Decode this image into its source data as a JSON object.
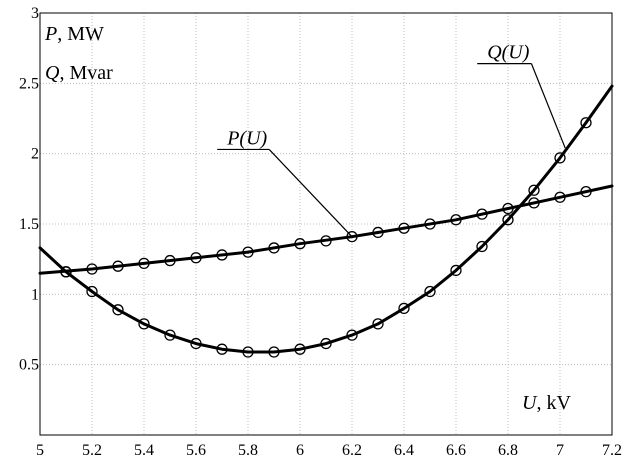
{
  "chart_data": {
    "type": "line",
    "ylabel_p": {
      "sym": "P",
      "unit": ", MW"
    },
    "ylabel_q": {
      "sym": "Q",
      "unit": ", Mvar"
    },
    "xlabel": {
      "sym": "U",
      "unit": ", kV"
    },
    "xlim": [
      5.0,
      7.2
    ],
    "ylim": [
      0,
      3
    ],
    "xticks": [
      "5",
      "5.2",
      "5.4",
      "5.6",
      "5.8",
      "6",
      "6.2",
      "6.4",
      "6.6",
      "6.8",
      "7",
      "7.2"
    ],
    "yticks": [
      "0.5",
      "1",
      "1.5",
      "2",
      "2.5",
      "3"
    ],
    "grid": true,
    "series": [
      {
        "name": "P(U)",
        "marker": "circle",
        "x": [
          5.1,
          5.2,
          5.3,
          5.4,
          5.5,
          5.6,
          5.7,
          5.8,
          5.9,
          6.0,
          6.1,
          6.2,
          6.3,
          6.4,
          6.5,
          6.6,
          6.7,
          6.8,
          6.9,
          7.0,
          7.1
        ],
        "values": [
          1.16,
          1.18,
          1.2,
          1.22,
          1.24,
          1.26,
          1.28,
          1.3,
          1.33,
          1.36,
          1.38,
          1.41,
          1.44,
          1.47,
          1.5,
          1.53,
          1.57,
          1.61,
          1.65,
          1.69,
          1.73
        ],
        "line_x": [
          5.0,
          5.2,
          5.4,
          5.6,
          5.8,
          6.0,
          6.2,
          6.4,
          6.6,
          6.8,
          7.0,
          7.2
        ],
        "line_y": [
          1.15,
          1.18,
          1.22,
          1.26,
          1.3,
          1.36,
          1.41,
          1.47,
          1.53,
          1.61,
          1.69,
          1.77
        ]
      },
      {
        "name": "Q(U)",
        "marker": "circle",
        "x": [
          5.1,
          5.2,
          5.3,
          5.4,
          5.5,
          5.6,
          5.7,
          5.8,
          5.9,
          6.0,
          6.1,
          6.2,
          6.3,
          6.4,
          6.5,
          6.6,
          6.7,
          6.8,
          6.9,
          7.0,
          7.1
        ],
        "values": [
          1.16,
          1.02,
          0.89,
          0.79,
          0.71,
          0.65,
          0.61,
          0.59,
          0.59,
          0.61,
          0.65,
          0.71,
          0.79,
          0.9,
          1.02,
          1.17,
          1.34,
          1.53,
          1.74,
          1.97,
          2.22
        ],
        "line_x": [
          5.0,
          5.1,
          5.2,
          5.3,
          5.4,
          5.5,
          5.6,
          5.7,
          5.8,
          5.9,
          6.0,
          6.1,
          6.2,
          6.3,
          6.4,
          6.5,
          6.6,
          6.7,
          6.8,
          6.9,
          7.0,
          7.1,
          7.2
        ],
        "line_y": [
          1.33,
          1.16,
          1.02,
          0.89,
          0.79,
          0.71,
          0.65,
          0.61,
          0.59,
          0.59,
          0.61,
          0.65,
          0.71,
          0.79,
          0.9,
          1.02,
          1.17,
          1.34,
          1.53,
          1.74,
          1.97,
          2.22,
          2.48
        ]
      }
    ],
    "annotations": [
      {
        "text": "P(U)",
        "series": 0,
        "x": 6.2,
        "y": 1.41,
        "label_x": 5.72,
        "label_y": 2.03
      },
      {
        "text": "Q(U)",
        "series": 1,
        "x": 7.02,
        "y": 2.04,
        "label_x": 6.72,
        "label_y": 2.64
      }
    ]
  }
}
